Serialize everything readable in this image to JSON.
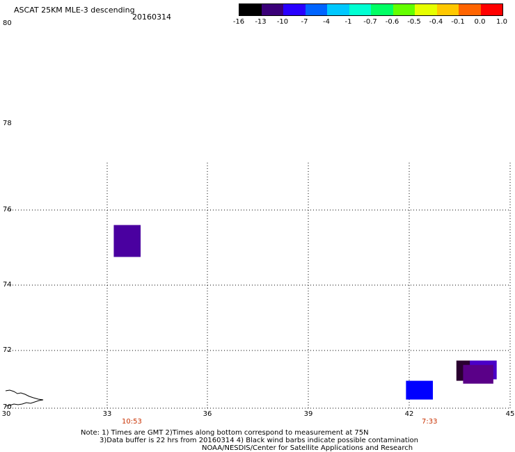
{
  "header": {
    "title": "ASCAT 25KM MLE-3 descending",
    "date": "20160314"
  },
  "colorbar": {
    "labels": [
      "-16",
      "-13",
      "-10",
      "-7",
      "-4",
      "-1",
      "-0.7",
      "-0.6",
      "-0.5",
      "-0.4",
      "-0.1",
      "0.0",
      "1.0"
    ],
    "colors": [
      "#000000",
      "#3a0078",
      "#2800ff",
      "#0064ff",
      "#00c8ff",
      "#00ffd2",
      "#00ff64",
      "#64ff00",
      "#e6ff00",
      "#ffc800",
      "#ff6400",
      "#ff0000"
    ]
  },
  "axes": {
    "lat_labels": [
      "80",
      "78",
      "76",
      "74",
      "72",
      "70"
    ],
    "lon_labels": [
      "30",
      "33",
      "36",
      "39",
      "42",
      "45"
    ]
  },
  "times": [
    "10:53",
    "7:33"
  ],
  "notes": {
    "line1": "Note: 1) Times are GMT 2)Times along bottom correspond to measurement at 75N",
    "line2": "3)Data buffer is 22 hrs from 20160314 4) Black wind barbs indicate possible contamination",
    "line3": "NOAA/NESDIS/Center for Satellite Applications and Research"
  },
  "data_cells": [
    {
      "lon_min": 33.2,
      "lon_max": 34.0,
      "lat_min": 74.75,
      "lat_max": 75.6,
      "color": "#4a00a0"
    },
    {
      "lon_min": 41.9,
      "lon_max": 42.7,
      "lat_min": 70.3,
      "lat_max": 70.95,
      "color": "#0000ff"
    },
    {
      "lon_min": 43.4,
      "lon_max": 44.1,
      "lat_min": 70.95,
      "lat_max": 71.65,
      "color": "#2a0030"
    },
    {
      "lon_min": 43.8,
      "lon_max": 44.6,
      "lat_min": 71.0,
      "lat_max": 71.65,
      "color": "#4a00c8"
    },
    {
      "lon_min": 43.6,
      "lon_max": 44.5,
      "lat_min": 70.85,
      "lat_max": 71.5,
      "color": "#5a0088"
    }
  ]
}
